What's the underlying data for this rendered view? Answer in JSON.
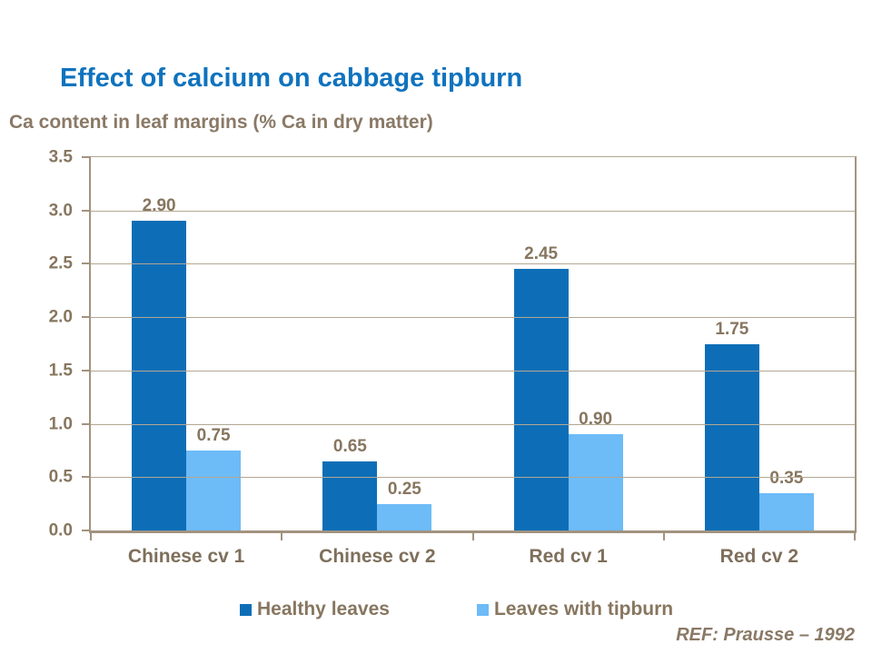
{
  "slide": {
    "title": "Effect of calcium on cabbage tipburn",
    "subtitle": "Ca content in leaf margins (% Ca in dry matter)",
    "reference": "REF: Prausse – 1992"
  },
  "colors": {
    "title_blue": "#0F73BE",
    "text_brown": "#87765F",
    "axis_line": "#A2937F",
    "gridline": "#B3A794",
    "series_healthy": "#0D6EB7",
    "series_tipburn": "#6DBBF7",
    "background": "#FFFFFF"
  },
  "chart_data": {
    "type": "bar",
    "title": "Effect of calcium on cabbage tipburn",
    "ylabel": "Ca content in leaf margins (% Ca in dry matter)",
    "xlabel": "",
    "categories": [
      "Chinese cv 1",
      "Chinese cv 2",
      "Red cv 1",
      "Red cv 2"
    ],
    "series": [
      {
        "name": "Healthy leaves",
        "color": "#0D6EB7",
        "values": [
          2.9,
          0.65,
          2.45,
          1.75
        ]
      },
      {
        "name": "Leaves with tipburn",
        "color": "#6DBBF7",
        "values": [
          0.75,
          0.25,
          0.9,
          0.35
        ]
      }
    ],
    "data_labels": true,
    "ylim": [
      0,
      3.5
    ],
    "ytick_step": 0.5,
    "yticks": [
      "3.5",
      "3.0",
      "2.5",
      "2.0",
      "1.5",
      "1.0",
      "0.5",
      "0.0"
    ],
    "grid": true,
    "legend_position": "bottom"
  }
}
